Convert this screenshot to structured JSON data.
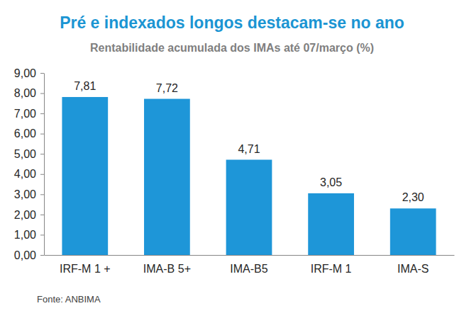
{
  "chart_data": {
    "type": "bar",
    "title": "Pré e indexados longos destacam-se no ano",
    "subtitle": "Rentabilidade acumulada dos IMAs até 07/março  (%)",
    "source": "Fonte: ANBIMA",
    "categories": [
      "IRF-M 1 +",
      "IMA-B 5+",
      "IMA-B5",
      "IRF-M 1",
      "IMA-S"
    ],
    "values": [
      7.81,
      7.72,
      4.71,
      3.05,
      2.3
    ],
    "value_labels": [
      "7,81",
      "7,72",
      "4,71",
      "3,05",
      "2,30"
    ],
    "color": "#1e96d8",
    "ylim": [
      0,
      9
    ],
    "yticks": [
      {
        "value": 0,
        "label": "0,00"
      },
      {
        "value": 1,
        "label": "1,00"
      },
      {
        "value": 2,
        "label": "2,00"
      },
      {
        "value": 3,
        "label": "3,00"
      },
      {
        "value": 4,
        "label": "4,00"
      },
      {
        "value": 5,
        "label": "5,00"
      },
      {
        "value": 6,
        "label": "6,00"
      },
      {
        "value": 7,
        "label": "7,00"
      },
      {
        "value": 8,
        "label": "8,00"
      },
      {
        "value": 9,
        "label": "9,00"
      }
    ],
    "grid": false,
    "data_labels": true
  }
}
